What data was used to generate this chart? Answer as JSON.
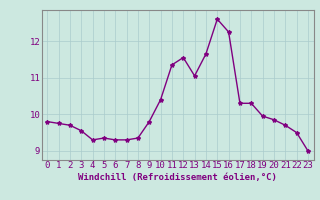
{
  "x": [
    0,
    1,
    2,
    3,
    4,
    5,
    6,
    7,
    8,
    9,
    10,
    11,
    12,
    13,
    14,
    15,
    16,
    17,
    18,
    19,
    20,
    21,
    22,
    23
  ],
  "y": [
    9.8,
    9.75,
    9.7,
    9.55,
    9.3,
    9.35,
    9.3,
    9.3,
    9.35,
    9.8,
    10.4,
    11.35,
    11.55,
    11.05,
    11.65,
    12.6,
    12.25,
    10.3,
    10.3,
    9.95,
    9.85,
    9.7,
    9.5,
    9.0
  ],
  "line_color": "#800080",
  "marker": "*",
  "bg_color": "#cce8e0",
  "grid_color": "#aacccc",
  "xlabel": "Windchill (Refroidissement éolien,°C)",
  "xlim": [
    -0.5,
    23.5
  ],
  "ylim": [
    8.75,
    12.85
  ],
  "yticks": [
    9,
    10,
    11,
    12
  ],
  "xticks": [
    0,
    1,
    2,
    3,
    4,
    5,
    6,
    7,
    8,
    9,
    10,
    11,
    12,
    13,
    14,
    15,
    16,
    17,
    18,
    19,
    20,
    21,
    22,
    23
  ],
  "label_fontsize": 6.5,
  "tick_fontsize": 6.5
}
